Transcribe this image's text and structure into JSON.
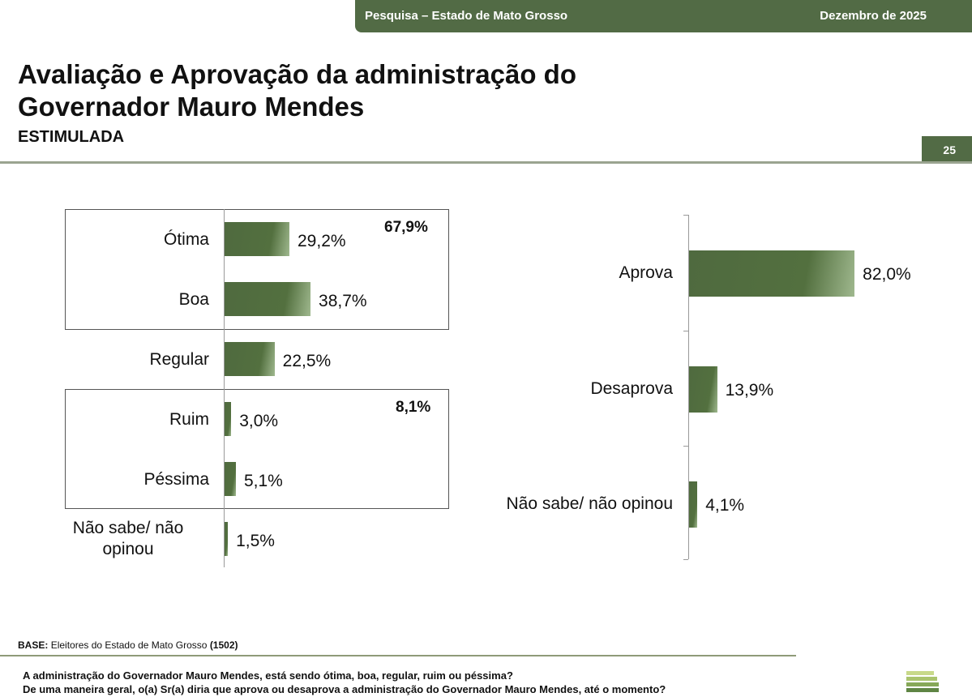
{
  "header": {
    "survey": "Pesquisa – Estado de Mato Grosso",
    "date": "Dezembro de 2025"
  },
  "title": "Avaliação e Aprovação da administração do Governador Mauro Mendes",
  "subtitle": "ESTIMULADA",
  "page_number": "25",
  "colors": {
    "bar": "#4f6a3f",
    "header": "#526b45"
  },
  "chart_data": [
    {
      "type": "bar",
      "orientation": "horizontal",
      "categories": [
        "Ótima",
        "Boa",
        "Regular",
        "Ruim",
        "Péssima",
        "Não sabe/ não opinou"
      ],
      "values": [
        29.2,
        38.7,
        22.5,
        3.0,
        5.1,
        1.5
      ],
      "labels": [
        "29,2%",
        "38,7%",
        "22,5%",
        "3,0%",
        "5,1%",
        "1,5%"
      ],
      "groups": [
        {
          "label": "67,9%",
          "members": [
            "Ótima",
            "Boa"
          ]
        },
        {
          "label": "8,1%",
          "members": [
            "Ruim",
            "Péssima"
          ]
        }
      ]
    },
    {
      "type": "bar",
      "orientation": "horizontal",
      "categories": [
        "Aprova",
        "Desaprova",
        "Não sabe/ não opinou"
      ],
      "values": [
        82.0,
        13.9,
        4.1
      ],
      "labels": [
        "82,0%",
        "13,9%",
        "4,1%"
      ]
    }
  ],
  "footer": {
    "base_label": "BASE:",
    "base_text": "Eleitores do Estado de Mato Grosso",
    "base_n": "(1502)",
    "q1": "A administração do Governador Mauro Mendes, está sendo ótima, boa, regular, ruim ou péssima?",
    "q2": "De uma maneira geral, o(a) Sr(a) diria que aprova ou desaprova a administração do Governador Mauro Mendes, até o momento?"
  }
}
